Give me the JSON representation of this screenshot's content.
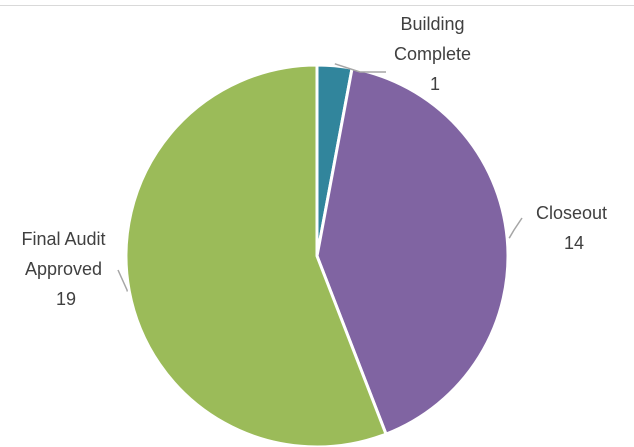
{
  "chart_data": {
    "type": "pie",
    "title": "",
    "slices": [
      {
        "label_lines": [
          "Building",
          "Complete"
        ],
        "value": 1,
        "value_label": "1",
        "color": "#31859c"
      },
      {
        "label_lines": [
          "Closeout"
        ],
        "value": 14,
        "value_label": "14",
        "color": "#8064a2"
      },
      {
        "label_lines": [
          "Final Audit",
          "Approved"
        ],
        "value": 19,
        "value_label": "19",
        "color": "#9bbb59"
      }
    ],
    "start_angle_deg": 0,
    "direction": "clockwise",
    "slice_border_color": "#ffffff",
    "leader_line_color": "#a6a6a6",
    "label_color": "#404040"
  }
}
